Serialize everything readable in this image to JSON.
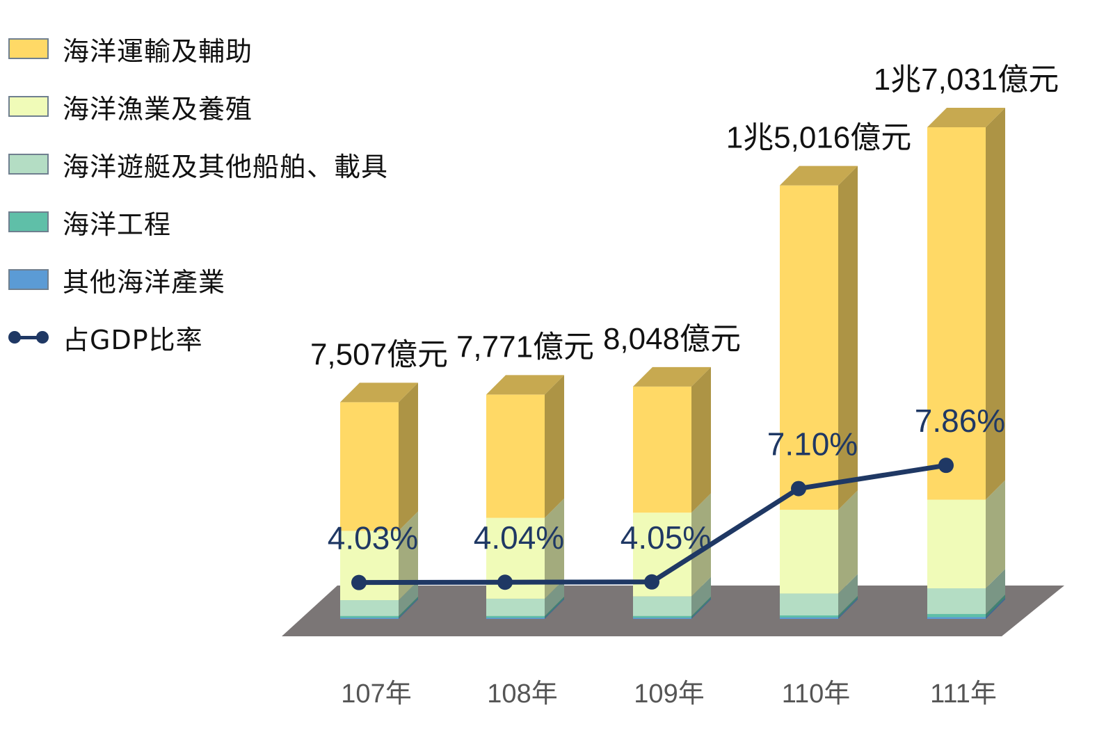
{
  "chart_data": {
    "type": "bar",
    "stacked": true,
    "categories": [
      "107年",
      "108年",
      "109年",
      "110年",
      "111年"
    ],
    "totals_label": [
      "7,507億元",
      "7,771億元",
      "8,048億元",
      "1兆5,016億元",
      "1兆7,031億元"
    ],
    "totals": [
      7507,
      7771,
      8048,
      15016,
      17031
    ],
    "series": [
      {
        "name": "其他海洋產業",
        "color": "#5b9bd5",
        "values": [
          40,
          40,
          40,
          50,
          60
        ]
      },
      {
        "name": "海洋工程",
        "color": "#5fbfa8",
        "values": [
          60,
          60,
          60,
          70,
          110
        ]
      },
      {
        "name": "海洋遊艇及其他船舶、載具",
        "color": "#b4ddc4",
        "values": [
          550,
          600,
          680,
          760,
          890
        ]
      },
      {
        "name": "海洋漁業及養殖",
        "color": "#f0fbb8",
        "values": [
          2400,
          2800,
          2900,
          2900,
          3070
        ]
      },
      {
        "name": "海洋運輸及輔助",
        "color": "#ffd966",
        "values": [
          4457,
          4271,
          4368,
          11236,
          12901
        ]
      }
    ],
    "line_series": {
      "name": "占GDP比率",
      "color": "#1f3864",
      "values": [
        4.03,
        4.04,
        4.05,
        7.1,
        7.86
      ],
      "labels": [
        "4.03%",
        "4.04%",
        "4.05%",
        "7.10%",
        "7.86%"
      ]
    },
    "ylim": [
      0,
      17031
    ],
    "legend_position": "top-left",
    "grid": false
  }
}
